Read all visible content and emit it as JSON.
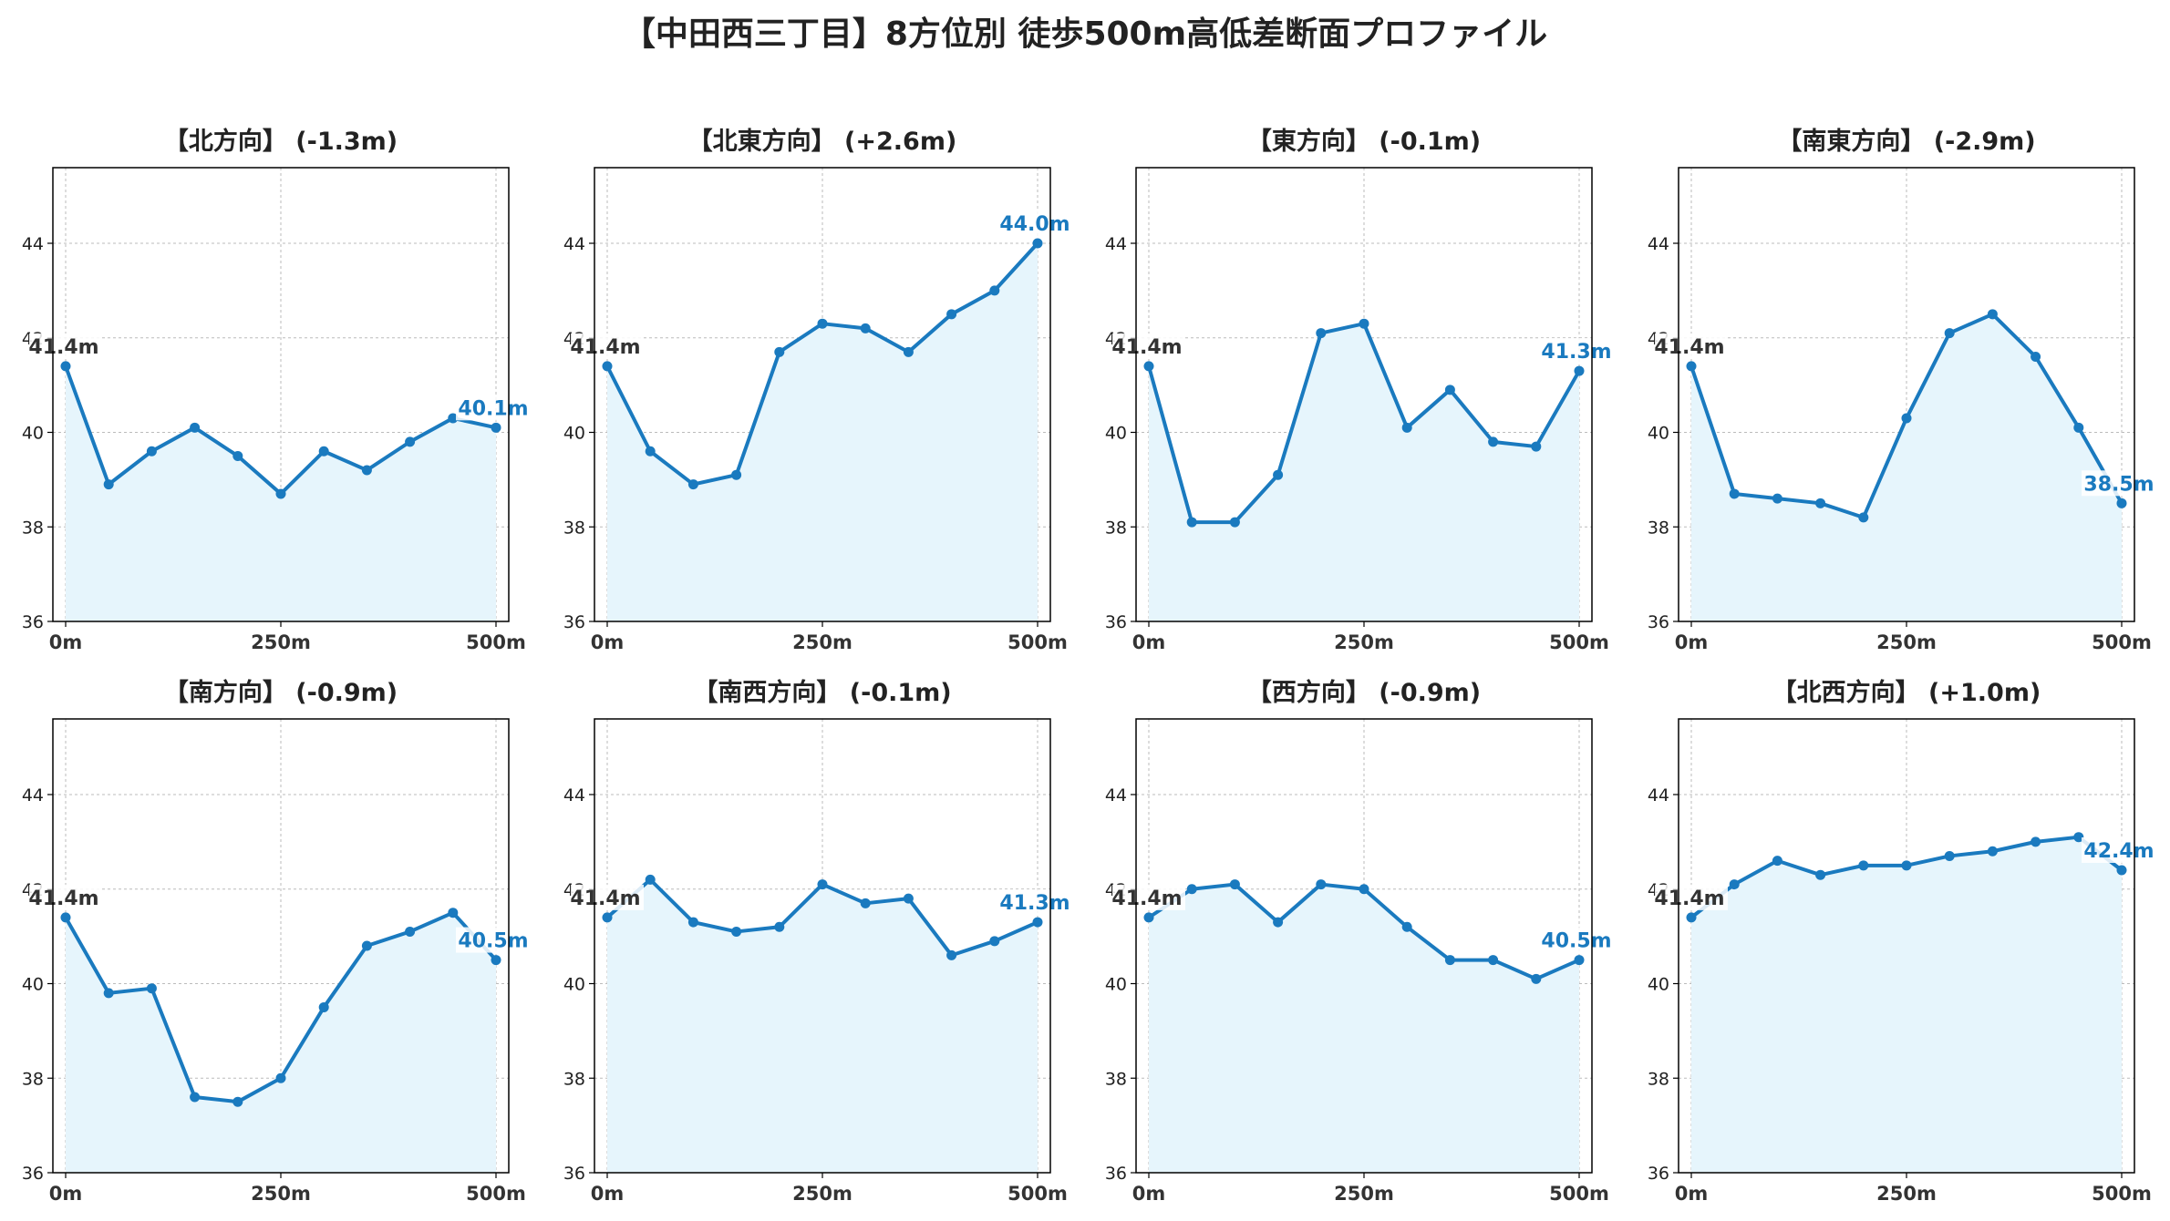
{
  "title": "【中田西三丁目】8方位別 徒歩500m高低差断面プロファイル",
  "colors": {
    "line": "#1a7abf",
    "fill": "#e6f5fc",
    "start_label": "#333333",
    "end_label": "#1a7abf",
    "grid": "#bbbbbb"
  },
  "chart_data": [
    {
      "type": "area",
      "title": "【北方向】 (-1.3m)",
      "x": [
        0,
        50,
        100,
        150,
        200,
        250,
        300,
        350,
        400,
        450,
        500
      ],
      "y": [
        41.4,
        38.9,
        39.6,
        40.1,
        39.5,
        38.7,
        39.6,
        39.2,
        39.8,
        40.3,
        40.1
      ],
      "start_label": "41.4m",
      "end_label": "40.1m",
      "xticks": [
        "0m",
        "250m",
        "500m"
      ],
      "yticks": [
        "36",
        "38",
        "40",
        "42",
        "44"
      ],
      "xlim": [
        0,
        500
      ],
      "ylim": [
        36,
        45.6
      ],
      "grid": true
    },
    {
      "type": "area",
      "title": "【北東方向】 (+2.6m)",
      "x": [
        0,
        50,
        100,
        150,
        200,
        250,
        300,
        350,
        400,
        450,
        500
      ],
      "y": [
        41.4,
        39.6,
        38.9,
        39.1,
        41.7,
        42.3,
        42.2,
        41.7,
        42.5,
        43.0,
        44.0
      ],
      "start_label": "41.4m",
      "end_label": "44.0m",
      "xticks": [
        "0m",
        "250m",
        "500m"
      ],
      "yticks": [
        "36",
        "38",
        "40",
        "42",
        "44"
      ],
      "xlim": [
        0,
        500
      ],
      "ylim": [
        36,
        45.6
      ],
      "grid": true
    },
    {
      "type": "area",
      "title": "【東方向】 (-0.1m)",
      "x": [
        0,
        50,
        100,
        150,
        200,
        250,
        300,
        350,
        400,
        450,
        500
      ],
      "y": [
        41.4,
        38.1,
        38.1,
        39.1,
        42.1,
        42.3,
        40.1,
        40.9,
        39.8,
        39.7,
        41.3
      ],
      "start_label": "41.4m",
      "end_label": "41.3m",
      "xticks": [
        "0m",
        "250m",
        "500m"
      ],
      "yticks": [
        "36",
        "38",
        "40",
        "42",
        "44"
      ],
      "xlim": [
        0,
        500
      ],
      "ylim": [
        36,
        45.6
      ],
      "grid": true
    },
    {
      "type": "area",
      "title": "【南東方向】 (-2.9m)",
      "x": [
        0,
        50,
        100,
        150,
        200,
        250,
        300,
        350,
        400,
        450,
        500
      ],
      "y": [
        41.4,
        38.7,
        38.6,
        38.5,
        38.2,
        40.3,
        42.1,
        42.5,
        41.6,
        40.1,
        38.5
      ],
      "start_label": "41.4m",
      "end_label": "38.5m",
      "xticks": [
        "0m",
        "250m",
        "500m"
      ],
      "yticks": [
        "36",
        "38",
        "40",
        "42",
        "44"
      ],
      "xlim": [
        0,
        500
      ],
      "ylim": [
        36,
        45.6
      ],
      "grid": true
    },
    {
      "type": "area",
      "title": "【南方向】 (-0.9m)",
      "x": [
        0,
        50,
        100,
        150,
        200,
        250,
        300,
        350,
        400,
        450,
        500
      ],
      "y": [
        41.4,
        39.8,
        39.9,
        37.6,
        37.5,
        38.0,
        39.5,
        40.8,
        41.1,
        41.5,
        40.5
      ],
      "start_label": "41.4m",
      "end_label": "40.5m",
      "xticks": [
        "0m",
        "250m",
        "500m"
      ],
      "yticks": [
        "36",
        "38",
        "40",
        "42",
        "44"
      ],
      "xlim": [
        0,
        500
      ],
      "ylim": [
        36,
        45.6
      ],
      "grid": true
    },
    {
      "type": "area",
      "title": "【南西方向】 (-0.1m)",
      "x": [
        0,
        50,
        100,
        150,
        200,
        250,
        300,
        350,
        400,
        450,
        500
      ],
      "y": [
        41.4,
        42.2,
        41.3,
        41.1,
        41.2,
        42.1,
        41.7,
        41.8,
        40.6,
        40.9,
        41.3
      ],
      "start_label": "41.4m",
      "end_label": "41.3m",
      "xticks": [
        "0m",
        "250m",
        "500m"
      ],
      "yticks": [
        "36",
        "38",
        "40",
        "42",
        "44"
      ],
      "xlim": [
        0,
        500
      ],
      "ylim": [
        36,
        45.6
      ],
      "grid": true
    },
    {
      "type": "area",
      "title": "【西方向】 (-0.9m)",
      "x": [
        0,
        50,
        100,
        150,
        200,
        250,
        300,
        350,
        400,
        450,
        500
      ],
      "y": [
        41.4,
        42.0,
        42.1,
        41.3,
        42.1,
        42.0,
        41.2,
        40.5,
        40.5,
        40.1,
        40.5
      ],
      "start_label": "41.4m",
      "end_label": "40.5m",
      "xticks": [
        "0m",
        "250m",
        "500m"
      ],
      "yticks": [
        "36",
        "38",
        "40",
        "42",
        "44"
      ],
      "xlim": [
        0,
        500
      ],
      "ylim": [
        36,
        45.6
      ],
      "grid": true
    },
    {
      "type": "area",
      "title": "【北西方向】 (+1.0m)",
      "x": [
        0,
        50,
        100,
        150,
        200,
        250,
        300,
        350,
        400,
        450,
        500
      ],
      "y": [
        41.4,
        42.1,
        42.6,
        42.3,
        42.5,
        42.5,
        42.7,
        42.8,
        43.0,
        43.1,
        42.4
      ],
      "start_label": "41.4m",
      "end_label": "42.4m",
      "xticks": [
        "0m",
        "250m",
        "500m"
      ],
      "yticks": [
        "36",
        "38",
        "40",
        "42",
        "44"
      ],
      "xlim": [
        0,
        500
      ],
      "ylim": [
        36,
        45.6
      ],
      "grid": true
    }
  ]
}
